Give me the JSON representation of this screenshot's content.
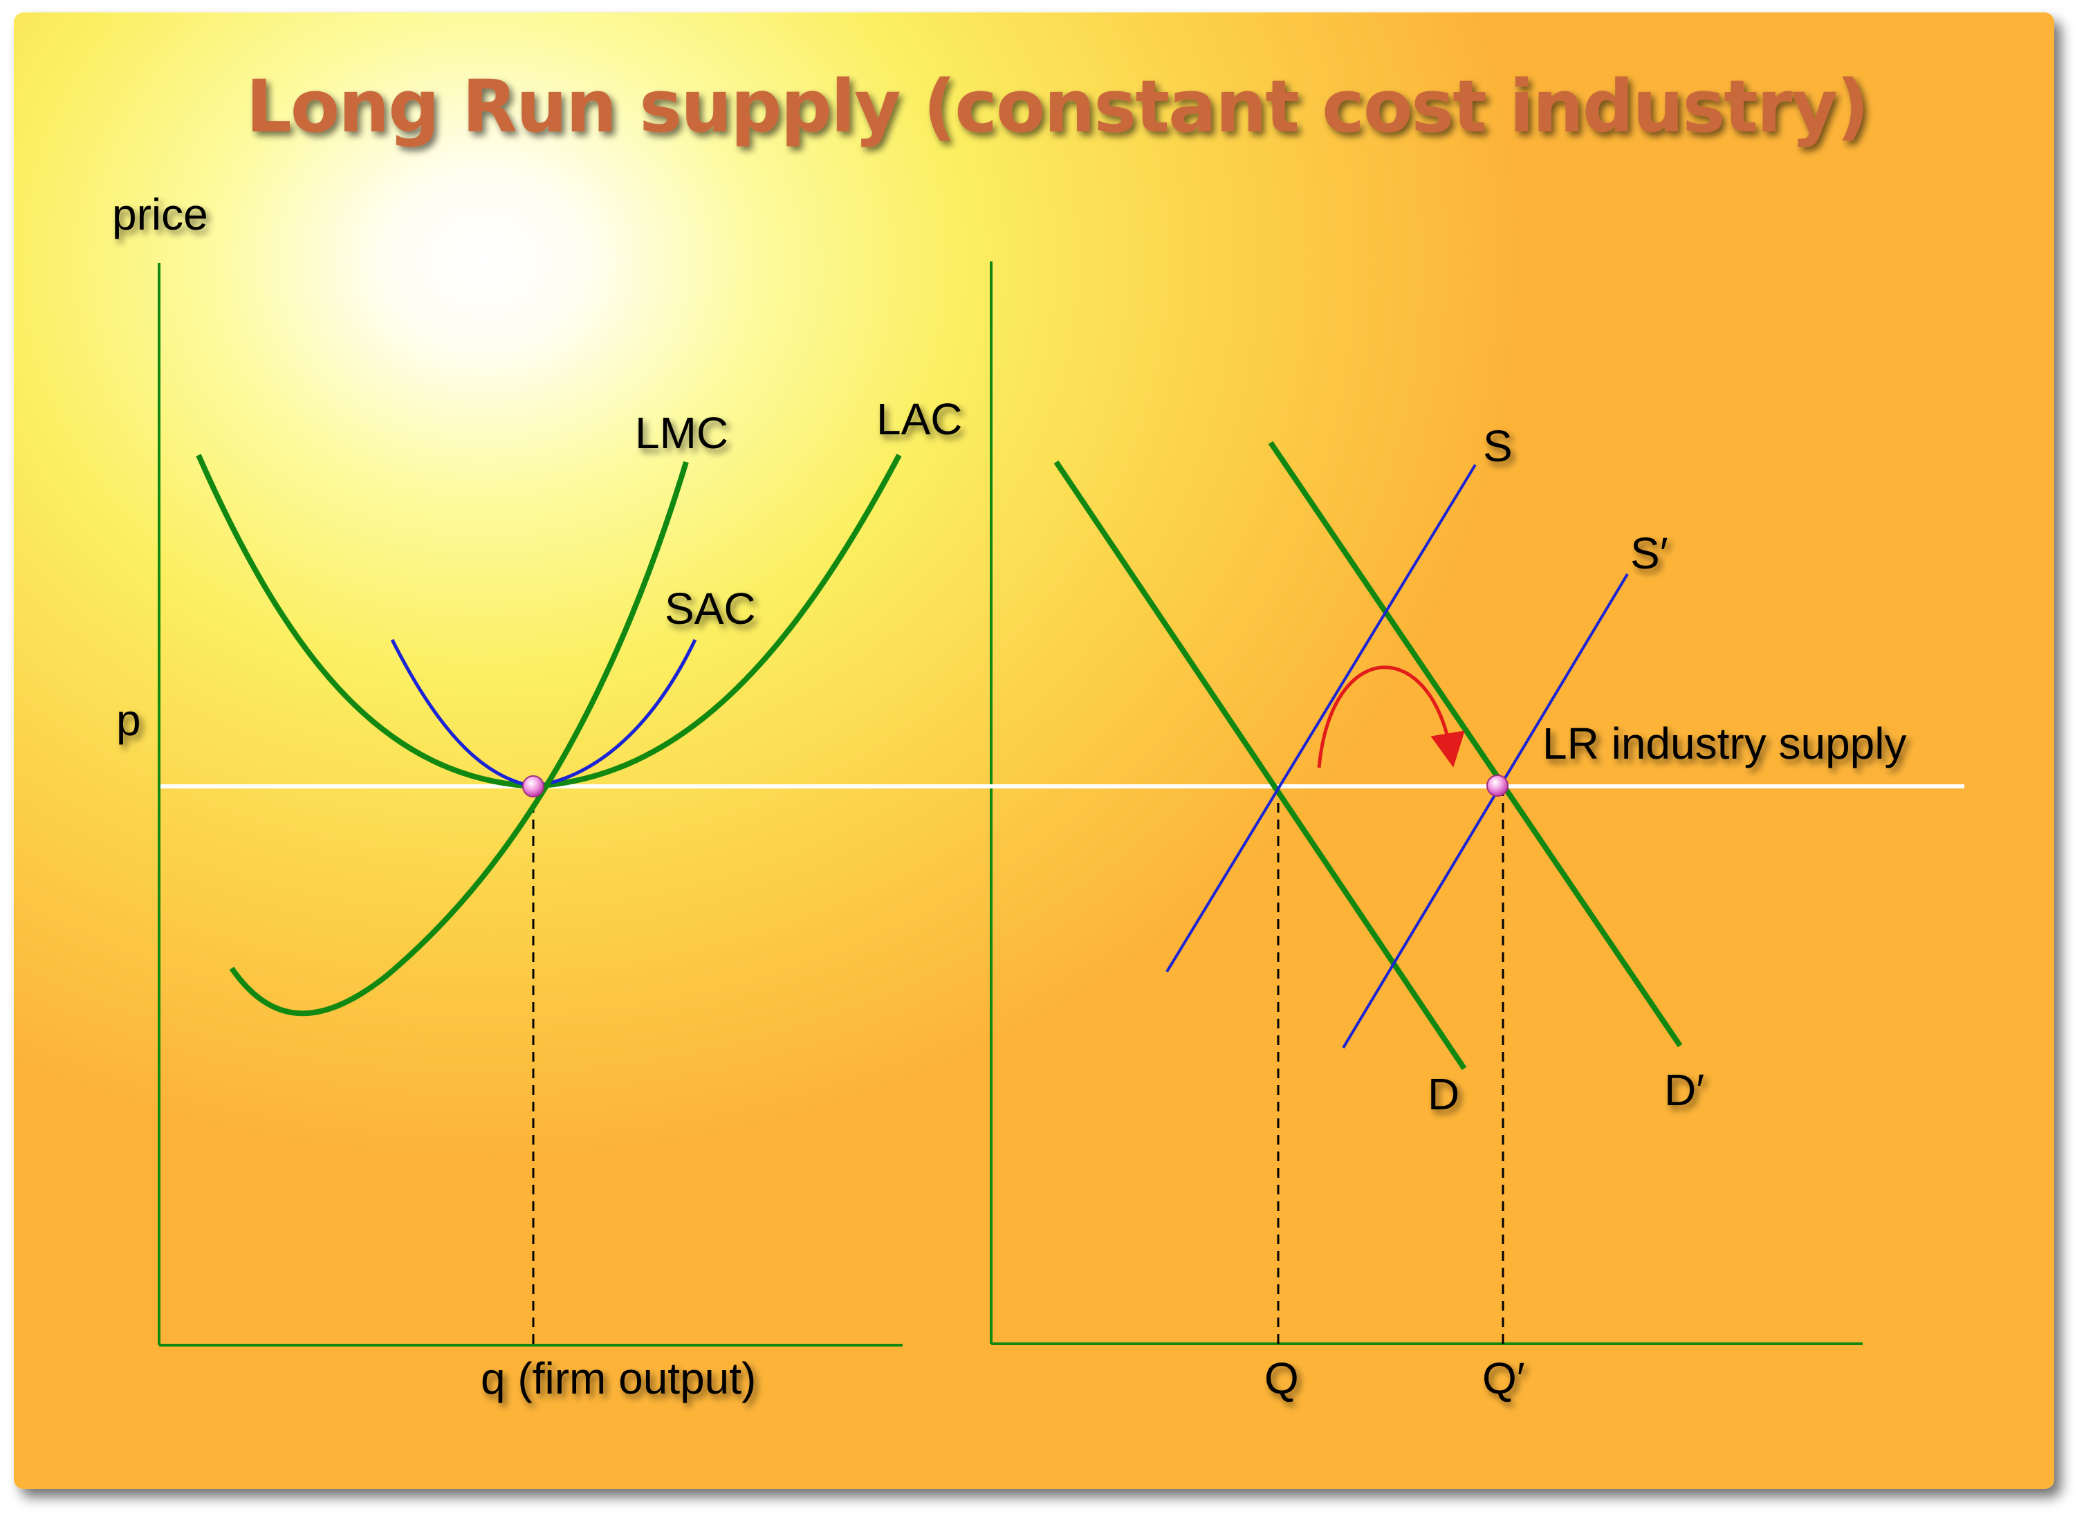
{
  "title": "Long Run supply (constant cost industry)",
  "axes": {
    "y_label": "price",
    "price_label": "p",
    "firm_x_label": "q (firm output)",
    "industry_q_label": "Q",
    "industry_q_prime_label": "Q′"
  },
  "curves": {
    "lmc": "LMC",
    "lac": "LAC",
    "sac": "SAC",
    "supply": "S",
    "supply_shifted": "S′",
    "demand": "D",
    "demand_shifted": "D′",
    "lr_supply": "LR industry supply"
  },
  "colors": {
    "curve_green": "#118811",
    "supply_blue": "#1a24d6",
    "price_line": "#ffffff",
    "arrow_red": "#e21b1b",
    "title": "#c8683a"
  }
}
